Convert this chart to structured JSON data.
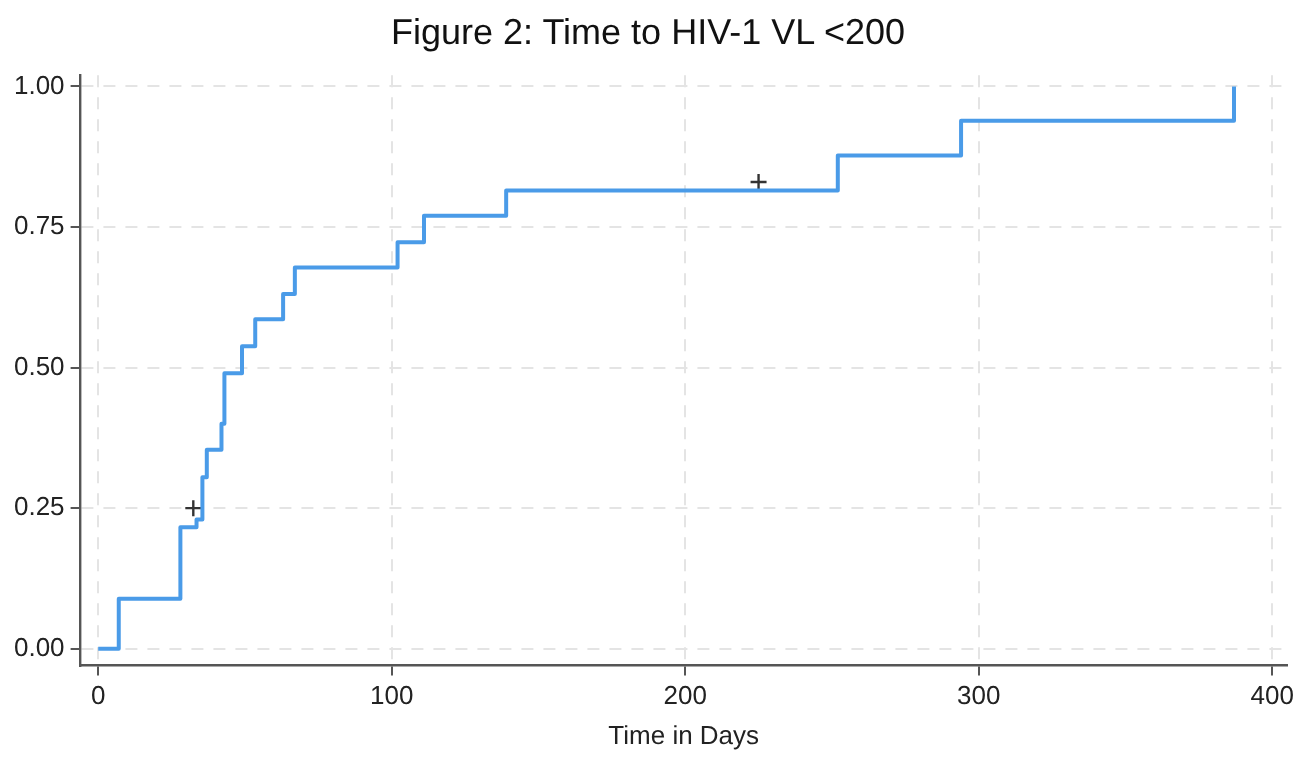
{
  "chart_data": {
    "type": "step",
    "title": "Figure 2: Time to HIV-1 VL <200",
    "xlabel": "Time in Days",
    "xlim": [
      -6,
      405
    ],
    "xticks": [
      0,
      100,
      200,
      300,
      400
    ],
    "ylim": [
      -0.03,
      1.02
    ],
    "yticks": [
      {
        "value": 0,
        "label": "0.00"
      },
      {
        "value": 0.25,
        "label": "0.25"
      },
      {
        "value": 0.5,
        "label": "0.50"
      },
      {
        "value": 0.75,
        "label": "0.75"
      },
      {
        "value": 1,
        "label": "1.00"
      }
    ],
    "grid": true,
    "legend": false,
    "series": [
      {
        "color": "#4a9be8",
        "marker": "none",
        "x": [
          0,
          7,
          28,
          33.5,
          35.5,
          37,
          42,
          43,
          49,
          53.5,
          63,
          67,
          102,
          111,
          139,
          252,
          294,
          387
        ],
        "values": [
          0,
          0.089,
          0.216,
          0.23,
          0.305,
          0.354,
          0.4,
          0.49,
          0.538,
          0.586,
          0.631,
          0.678,
          0.723,
          0.77,
          0.815,
          0.877,
          0.939,
          1.0
        ]
      },
      {
        "type": "scatter",
        "color": "#333333",
        "marker": "cross",
        "x": [
          32.4,
          225
        ],
        "values": [
          0.25,
          0.83
        ]
      }
    ]
  }
}
